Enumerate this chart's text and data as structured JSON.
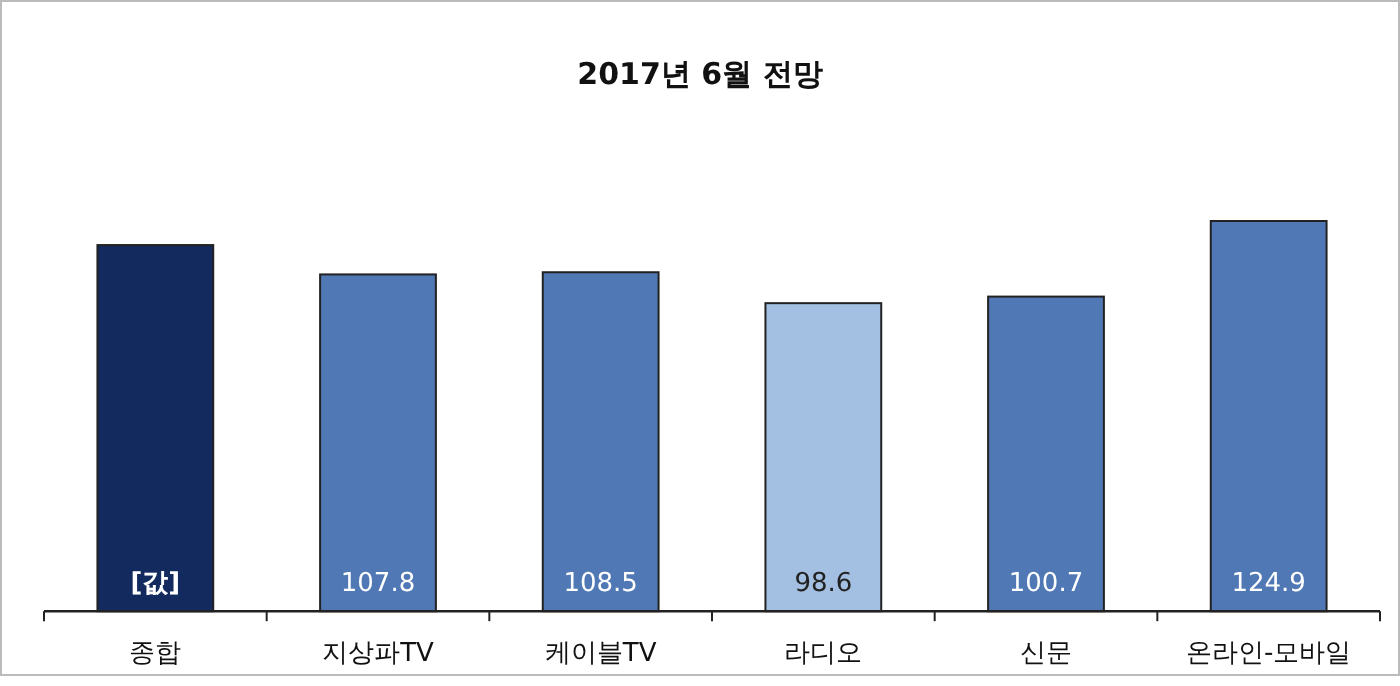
{
  "chart_data": {
    "type": "bar",
    "title": "2017년 6월 전망",
    "categories": [
      "종합",
      "지상파TV",
      "케이블TV",
      "라디오",
      "신문",
      "온라인-모바일"
    ],
    "values": [
      117.2,
      107.8,
      108.5,
      98.6,
      100.7,
      124.9
    ],
    "value_labels": [
      "[값]",
      "107.8",
      "108.5",
      "98.6",
      "100.7",
      "124.9"
    ],
    "colors": [
      "#132a5e",
      "#4f78b4",
      "#4f78b4",
      "#a3bfe1",
      "#4f78b4",
      "#4f78b4"
    ]
  }
}
